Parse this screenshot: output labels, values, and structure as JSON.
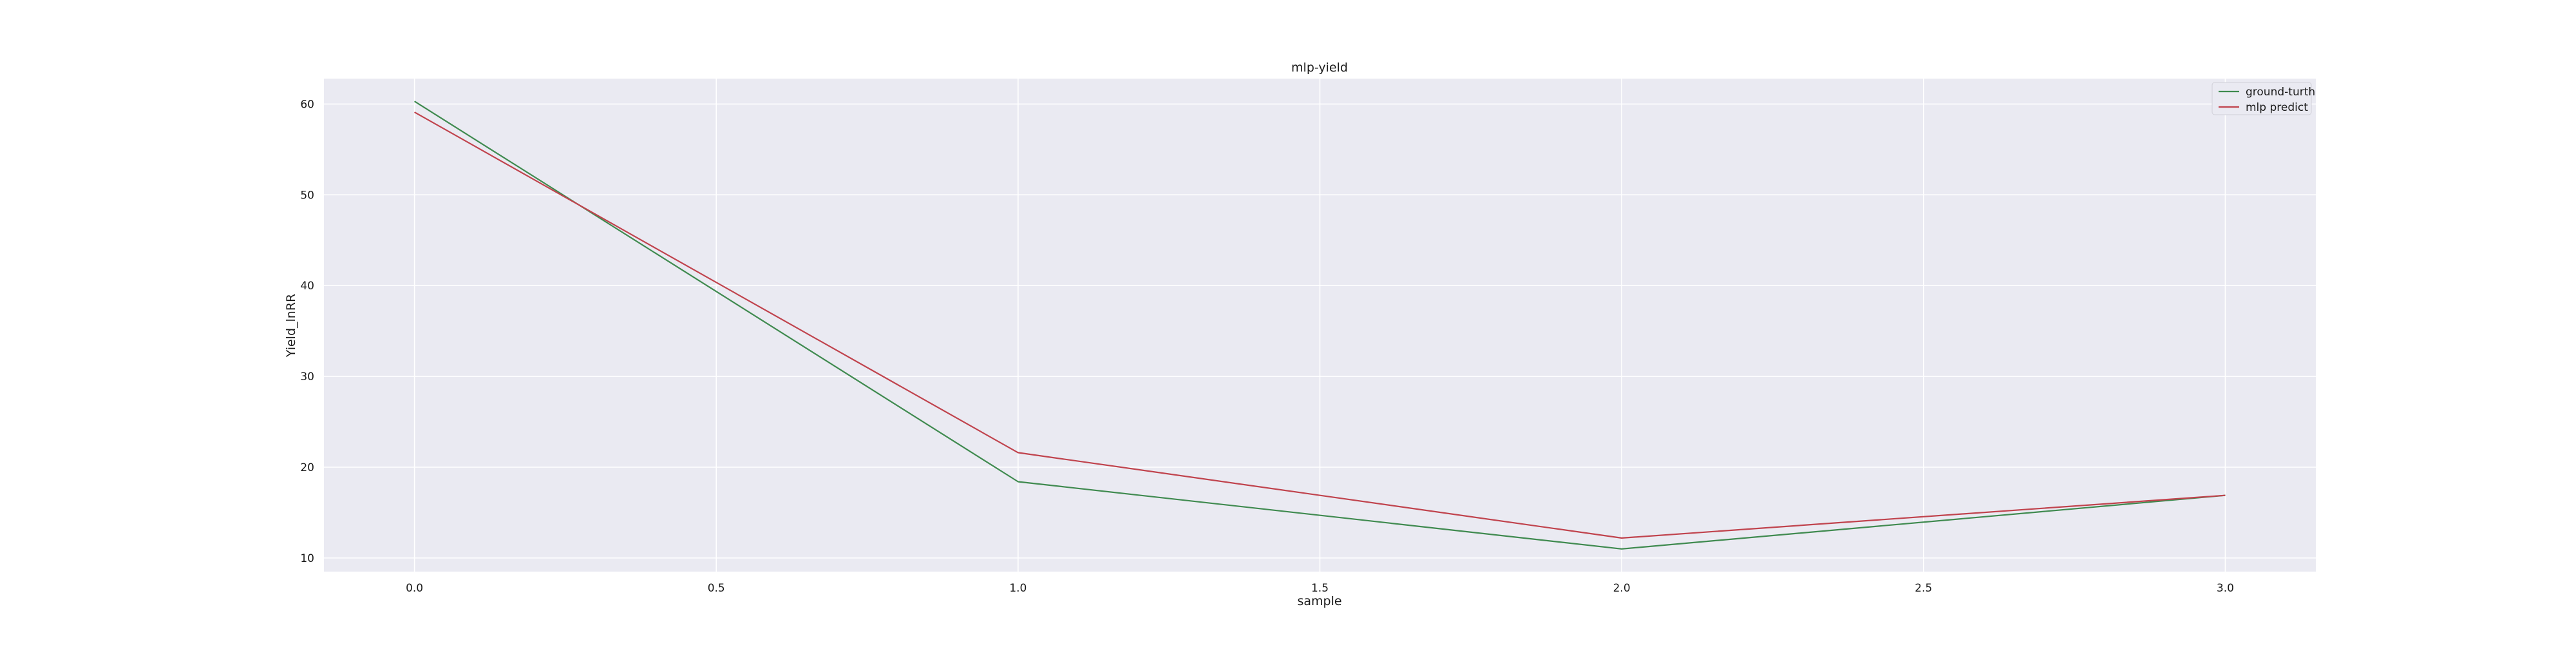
{
  "chart_data": {
    "type": "line",
    "title": "mlp-yield",
    "xlabel": "sample",
    "ylabel": "Yield_lnRR",
    "x": [
      0,
      1,
      2,
      3
    ],
    "series": [
      {
        "name": "ground-turth",
        "values": [
          60.3,
          18.4,
          11.0,
          16.9
        ],
        "color": "#3f8a4f"
      },
      {
        "name": "mlp predict",
        "values": [
          59.1,
          21.6,
          12.2,
          16.9
        ],
        "color": "#c0434d"
      }
    ],
    "xlim": [
      -0.15,
      3.15
    ],
    "ylim": [
      8.5,
      62.8
    ],
    "xticks": [
      "0.0",
      "0.5",
      "1.0",
      "1.5",
      "2.0",
      "2.5",
      "3.0"
    ],
    "xtick_values": [
      0,
      0.5,
      1.0,
      1.5,
      2.0,
      2.5,
      3.0
    ],
    "yticks": [
      "10",
      "20",
      "30",
      "40",
      "50",
      "60"
    ],
    "ytick_values": [
      10,
      20,
      30,
      40,
      50,
      60
    ],
    "grid": true,
    "legend_position": "top-right",
    "background_color": "#eaeaf2",
    "grid_color": "#ffffff"
  }
}
